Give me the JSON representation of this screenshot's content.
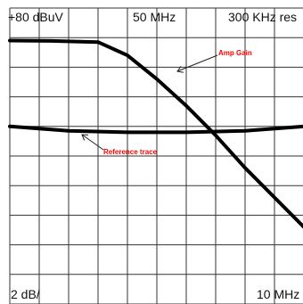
{
  "chart_data": {
    "type": "line",
    "title": "",
    "header": {
      "reference_level": "+80 dBuV",
      "center_frequency": "50 MHz",
      "resolution_bandwidth": "300 KHz res"
    },
    "footer": {
      "vertical_scale": "2 dB/",
      "span": "10 MHz"
    },
    "grid": true,
    "x_divisions": 10,
    "y_divisions": 10,
    "series": [
      {
        "name": "Amp Gain",
        "color": "#000000",
        "points": [
          [
            0,
            8.9
          ],
          [
            1.4,
            8.89
          ],
          [
            3.0,
            8.85
          ],
          [
            4.0,
            8.4
          ],
          [
            5.0,
            7.6
          ],
          [
            6.0,
            6.7
          ],
          [
            7.0,
            5.7
          ],
          [
            8.0,
            4.6
          ],
          [
            9.0,
            3.6
          ],
          [
            10.0,
            2.6
          ]
        ]
      },
      {
        "name": "Reference trace",
        "color": "#000000",
        "points": [
          [
            0,
            6.0
          ],
          [
            2.0,
            5.85
          ],
          [
            4.0,
            5.8
          ],
          [
            6.0,
            5.8
          ],
          [
            8.0,
            5.85
          ],
          [
            10.0,
            6.0
          ]
        ]
      }
    ],
    "annotations": [
      {
        "text": "Amp Gain",
        "color": "#ff0000",
        "series": "Amp Gain"
      },
      {
        "text": "Reference trace",
        "color": "#ff0000",
        "series": "Reference trace"
      }
    ]
  }
}
